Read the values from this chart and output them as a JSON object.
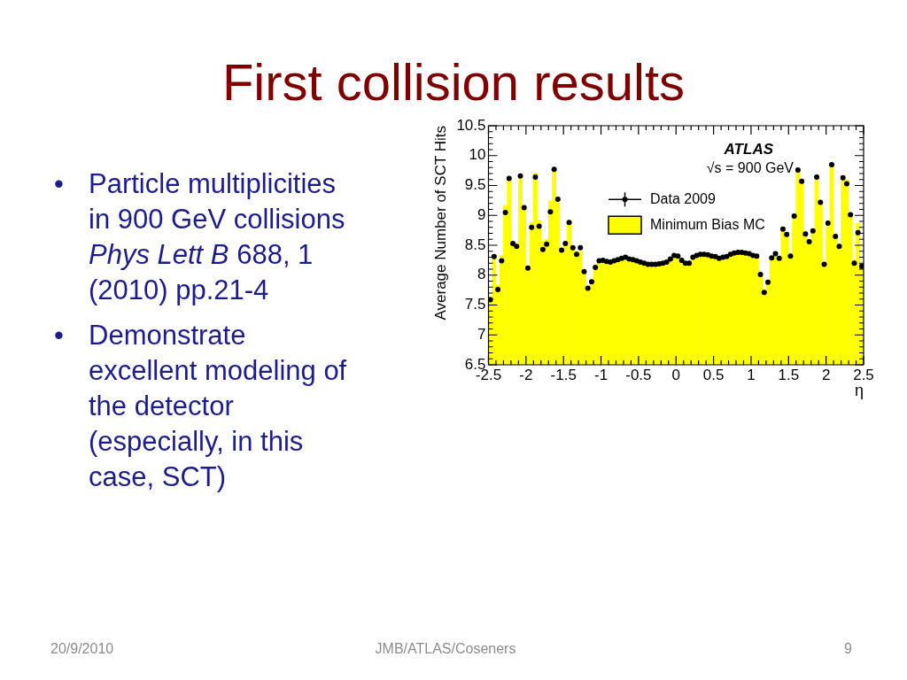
{
  "chart_data": {
    "type": "histogram",
    "title": "First collision results",
    "xlabel": "η",
    "ylabel": "Average Number of SCT Hits",
    "annotations": [
      "ATLAS",
      "√s = 900 GeV",
      "•",
      "Particle multiplicities in 900 GeV collisions",
      "Phys Lett B",
      "688, 1",
      "(2010) pp.21-4",
      "•",
      "Demonstrate excellent modeling of the detector (especially, in this case, SCT)",
      "20/9/2010",
      "JMB/ATLAS/Coseners",
      "9"
    ],
    "bins": [
      -2.5,
      -2.45,
      -2.4,
      -2.35,
      -2.3,
      -2.25,
      -2.2,
      -2.15,
      -2.1,
      -2.05,
      -2,
      -1.95,
      -1.9,
      -1.85,
      -1.8,
      -1.75,
      -1.7,
      -1.65,
      -1.6,
      -1.55,
      -1.5,
      -1.45,
      -1.4,
      -1.35,
      -1.3,
      -1.25,
      -1.2,
      -1.15,
      -1.1,
      -1.05,
      -1,
      -0.95,
      -0.9,
      -0.85,
      -0.8,
      -0.75,
      -0.7,
      -0.65,
      -0.6,
      -0.55,
      -0.5,
      -0.45,
      -0.4,
      -0.35,
      -0.3,
      -0.25,
      -0.2,
      -0.15,
      -0.1,
      -0.05,
      0,
      0.05,
      0.1,
      0.15,
      0.2,
      0.25,
      0.3,
      0.35,
      0.4,
      0.45,
      0.5,
      0.55,
      0.6,
      0.65,
      0.7,
      0.75,
      0.8,
      0.85,
      0.9,
      0.95,
      1,
      1.05,
      1.1,
      1.15,
      1.2,
      1.25,
      1.3,
      1.35,
      1.4,
      1.45,
      1.5,
      1.55,
      1.6,
      1.65,
      1.7,
      1.75,
      1.8,
      1.85,
      1.9,
      1.95,
      2,
      2.05,
      2.1,
      2.15,
      2.2,
      2.25,
      2.3,
      2.35,
      2.4,
      2.45,
      2.5
    ],
    "series": [
      {
        "name": "Data 2009",
        "type": "scatter",
        "color": "#000000",
        "x": [
          -2.475,
          -2.425,
          -2.375,
          -2.325,
          -2.275,
          -2.225,
          -2.175,
          -2.125,
          -2.075,
          -2.025,
          -1.975,
          -1.925,
          -1.875,
          -1.825,
          -1.775,
          -1.725,
          -1.675,
          -1.625,
          -1.575,
          -1.525,
          -1.475,
          -1.425,
          -1.375,
          -1.325,
          -1.275,
          -1.225,
          -1.175,
          -1.125,
          -1.075,
          -1.025,
          -0.975,
          -0.925,
          -0.875,
          -0.825,
          -0.775,
          -0.725,
          -0.675,
          -0.625,
          -0.575,
          -0.525,
          -0.475,
          -0.425,
          -0.375,
          -0.325,
          -0.275,
          -0.225,
          -0.175,
          -0.125,
          -0.075,
          -0.025,
          0.025,
          0.075,
          0.125,
          0.175,
          0.225,
          0.275,
          0.325,
          0.375,
          0.425,
          0.475,
          0.525,
          0.575,
          0.625,
          0.675,
          0.725,
          0.775,
          0.825,
          0.875,
          0.925,
          0.975,
          1.025,
          1.075,
          1.125,
          1.175,
          1.225,
          1.275,
          1.325,
          1.375,
          1.425,
          1.475,
          1.525,
          1.575,
          1.625,
          1.675,
          1.725,
          1.775,
          1.825,
          1.875,
          1.925,
          1.975,
          2.025,
          2.075,
          2.125,
          2.175,
          2.225,
          2.275,
          2.325,
          2.375,
          2.425,
          2.475
        ],
        "values": [
          7.59,
          8.31,
          7.76,
          8.24,
          9.05,
          9.62,
          8.53,
          8.48,
          9.66,
          9.13,
          8.12,
          8.8,
          9.64,
          8.82,
          8.43,
          8.52,
          9.06,
          9.77,
          9.27,
          8.42,
          8.53,
          8.88,
          8.46,
          8.35,
          8.46,
          8.06,
          7.78,
          7.89,
          8.13,
          8.24,
          8.25,
          8.23,
          8.22,
          8.24,
          8.26,
          8.28,
          8.3,
          8.27,
          8.26,
          8.24,
          8.22,
          8.2,
          8.18,
          8.18,
          8.18,
          8.19,
          8.2,
          8.22,
          8.27,
          8.33,
          8.32,
          8.25,
          8.2,
          8.2,
          8.3,
          8.33,
          8.35,
          8.35,
          8.34,
          8.32,
          8.31,
          8.28,
          8.3,
          8.31,
          8.35,
          8.37,
          8.38,
          8.38,
          8.37,
          8.36,
          8.33,
          8.32,
          8.01,
          7.71,
          7.88,
          8.29,
          8.36,
          8.28,
          8.77,
          8.68,
          8.32,
          8.99,
          9.76,
          9.57,
          8.69,
          8.56,
          8.74,
          9.64,
          9.22,
          8.18,
          8.87,
          9.85,
          8.65,
          8.48,
          9.63,
          9.53,
          9.01,
          8.2,
          8.71,
          8.15
        ]
      },
      {
        "name": "Minimum Bias MC",
        "color": "#ffff00",
        "values": [
          7.65,
          8.33,
          7.84,
          8.33,
          9.17,
          9.66,
          8.56,
          8.49,
          9.68,
          9.15,
          8.15,
          8.88,
          9.71,
          8.92,
          8.57,
          8.6,
          9.25,
          9.79,
          9.22,
          8.42,
          8.54,
          8.92,
          8.47,
          8.4,
          8.4,
          8.07,
          7.78,
          7.9,
          8.14,
          8.25,
          8.25,
          8.23,
          8.22,
          8.24,
          8.26,
          8.28,
          8.3,
          8.27,
          8.26,
          8.24,
          8.22,
          8.2,
          8.18,
          8.18,
          8.18,
          8.19,
          8.2,
          8.22,
          8.27,
          8.33,
          8.32,
          8.25,
          8.2,
          8.2,
          8.3,
          8.33,
          8.35,
          8.35,
          8.34,
          8.32,
          8.31,
          8.28,
          8.3,
          8.31,
          8.35,
          8.37,
          8.38,
          8.38,
          8.37,
          8.36,
          8.33,
          8.32,
          8.03,
          7.73,
          7.9,
          8.31,
          8.36,
          8.3,
          8.79,
          8.7,
          8.34,
          9.02,
          9.78,
          9.59,
          8.74,
          8.58,
          8.76,
          9.66,
          9.24,
          8.17,
          8.9,
          9.87,
          8.7,
          8.5,
          9.65,
          9.6,
          9.03,
          8.26,
          8.87,
          8.15
        ]
      }
    ],
    "xlim": [
      -2.5,
      2.5
    ],
    "ylim": [
      6.5,
      10.5
    ],
    "xticks": [
      -2.5,
      {
        "value": -2.4,
        "label": null
      },
      {
        "value": -2.3,
        "label": null
      },
      {
        "value": -2.2,
        "label": null
      },
      {
        "value": -2.1,
        "label": null
      },
      -2,
      {
        "value": -1.9,
        "label": null
      },
      {
        "value": -1.8,
        "label": null
      },
      {
        "value": -1.7,
        "label": null
      },
      {
        "value": -1.6,
        "label": null
      },
      -1.5,
      {
        "value": -1.4,
        "label": null
      },
      {
        "value": -1.3,
        "label": null
      },
      {
        "value": -1.2,
        "label": null
      },
      {
        "value": -1.1,
        "label": null
      },
      -1,
      {
        "value": -0.9,
        "label": null
      },
      {
        "value": -0.8,
        "label": null
      },
      {
        "value": -0.7,
        "label": null
      },
      {
        "value": -0.6,
        "label": null
      },
      -0.5,
      {
        "value": -0.4,
        "label": null
      },
      {
        "value": -0.3,
        "label": null
      },
      {
        "value": -0.2,
        "label": null
      },
      {
        "value": -0.1,
        "label": null
      },
      0,
      {
        "value": 0.1,
        "label": null
      },
      {
        "value": 0.2,
        "label": null
      },
      {
        "value": 0.3,
        "label": null
      },
      {
        "value": 0.4,
        "label": null
      },
      0.5,
      {
        "value": 0.6,
        "label": null
      },
      {
        "value": 0.7,
        "label": null
      },
      {
        "value": 0.8,
        "label": null
      },
      {
        "value": 0.9,
        "label": null
      },
      1,
      {
        "value": 1.1,
        "label": null
      },
      {
        "value": 1.2,
        "label": null
      },
      {
        "value": 1.3,
        "label": null
      },
      {
        "value": 1.4,
        "label": null
      },
      1.5,
      {
        "value": 1.6,
        "label": null
      },
      {
        "value": 1.7,
        "label": null
      },
      {
        "value": 1.8,
        "label": null
      },
      {
        "value": 1.9,
        "label": null
      },
      2,
      {
        "value": 2.1,
        "label": null
      },
      {
        "value": 2.2,
        "label": null
      },
      {
        "value": 2.3,
        "label": null
      },
      {
        "value": 2.4,
        "label": null
      },
      2.5
    ],
    "yticks": [
      6.5,
      {
        "value": 6.6,
        "label": null
      },
      {
        "value": 6.7,
        "label": null
      },
      {
        "value": 6.8,
        "label": null
      },
      {
        "value": 6.9,
        "label": null
      },
      7,
      {
        "value": 7.1,
        "label": null
      },
      {
        "value": 7.2,
        "label": null
      },
      {
        "value": 7.3,
        "label": null
      },
      {
        "value": 7.4,
        "label": null
      },
      7.5,
      {
        "value": 7.6,
        "label": null
      },
      {
        "value": 7.7,
        "label": null
      },
      {
        "value": 7.8,
        "label": null
      },
      {
        "value": 7.9,
        "label": null
      },
      8,
      {
        "value": 8.1,
        "label": null
      },
      {
        "value": 8.2,
        "label": null
      },
      {
        "value": 8.3,
        "label": null
      },
      {
        "value": 8.4,
        "label": null
      },
      8.5,
      {
        "value": 8.6,
        "label": null
      },
      {
        "value": 8.7,
        "label": null
      },
      {
        "value": 8.8,
        "label": null
      },
      {
        "value": 8.9,
        "label": null
      },
      9,
      {
        "value": 9.1,
        "label": null
      },
      {
        "value": 9.2,
        "label": null
      },
      {
        "value": 9.3,
        "label": null
      },
      {
        "value": 9.4,
        "label": null
      },
      9.5,
      {
        "value": 9.6,
        "label": null
      },
      {
        "value": 9.7,
        "label": null
      },
      {
        "value": 9.8,
        "label": null
      },
      {
        "value": 9.9,
        "label": null
      },
      10,
      {
        "value": 10.1,
        "label": null
      },
      {
        "value": 10.2,
        "label": null
      },
      {
        "value": 10.3,
        "label": null
      },
      {
        "value": 10.4,
        "label": null
      },
      10.5
    ],
    "legend": "top",
    "marker": "circle"
  }
}
